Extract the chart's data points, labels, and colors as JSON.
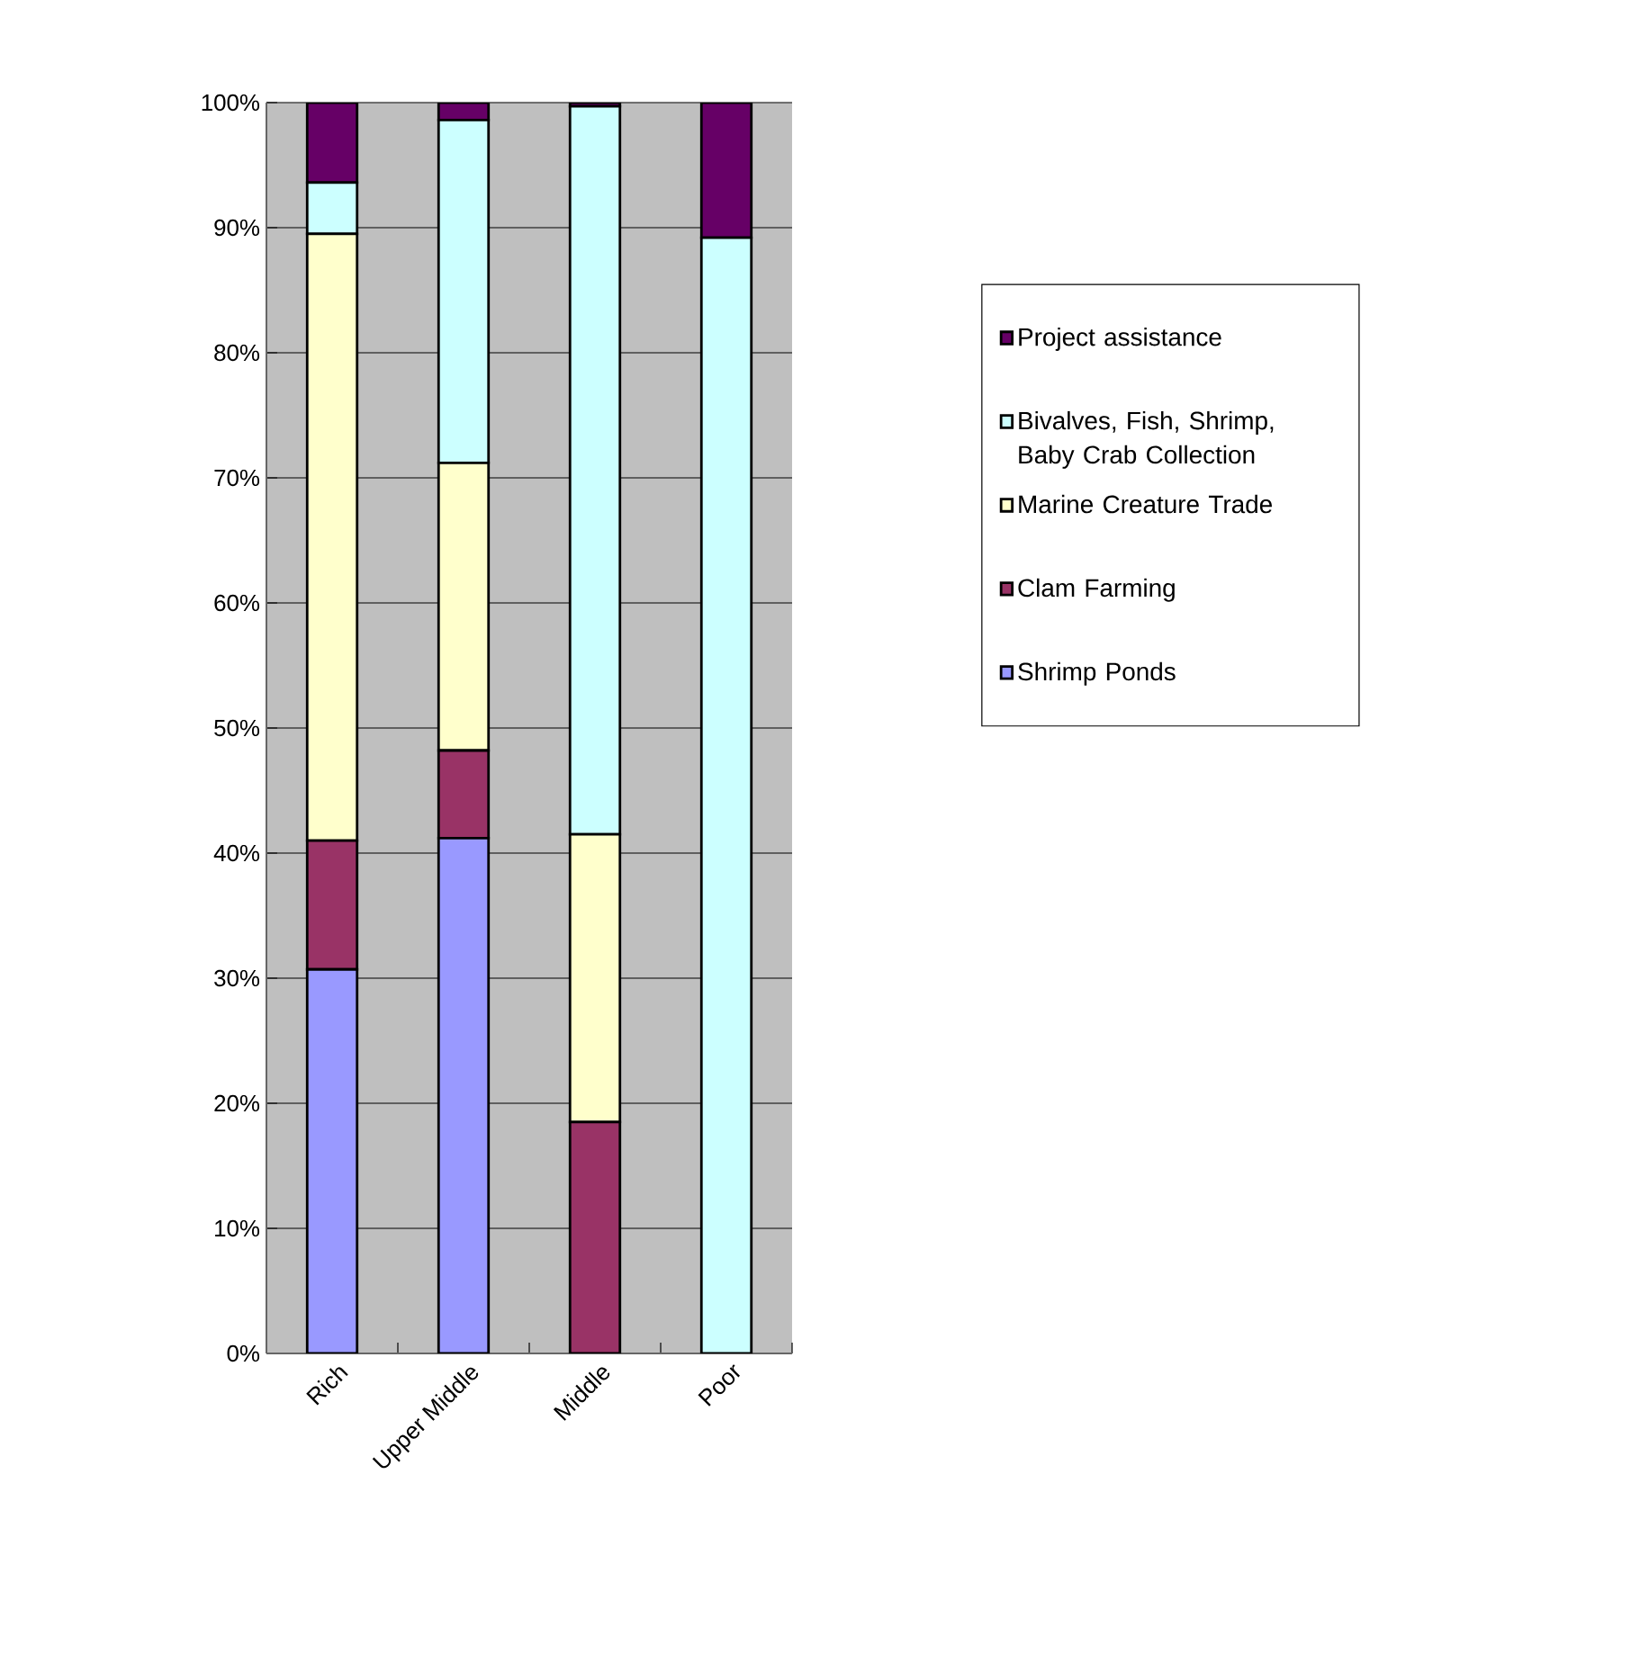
{
  "chart_data": {
    "type": "bar",
    "stacked": true,
    "categories": [
      "Rich",
      "Upper Middle",
      "Middle",
      "Poor"
    ],
    "series": [
      {
        "name": "Shrimp Ponds",
        "color": "#9999ff",
        "values": [
          30.7,
          41.2,
          0,
          0
        ]
      },
      {
        "name": "Clam Farming",
        "color": "#993366",
        "values": [
          10.3,
          7.0,
          18.5,
          0
        ]
      },
      {
        "name": "Marine Creature Trade",
        "color": "#ffffcc",
        "values": [
          48.5,
          23.0,
          23.0,
          0
        ]
      },
      {
        "name": "Bivalves, Fish, Shrimp, Baby Crab Collection",
        "color": "#ccffff",
        "values": [
          4.1,
          27.4,
          58.2,
          89.2
        ]
      },
      {
        "name": "Project assistance",
        "color": "#660066",
        "values": [
          6.4,
          1.4,
          0.3,
          10.8
        ]
      }
    ],
    "ylim": [
      0,
      100
    ],
    "yticks": [
      {
        "value": 0,
        "label": "0%"
      },
      {
        "value": 10,
        "label": "10%"
      },
      {
        "value": 20,
        "label": "20%"
      },
      {
        "value": 30,
        "label": "30%"
      },
      {
        "value": 40,
        "label": "40%"
      },
      {
        "value": 50,
        "label": "50%"
      },
      {
        "value": 60,
        "label": "60%"
      },
      {
        "value": 70,
        "label": "70%"
      },
      {
        "value": 80,
        "label": "80%"
      },
      {
        "value": 90,
        "label": "90%"
      },
      {
        "value": 100,
        "label": "100%"
      }
    ],
    "grid": "y",
    "legend": "right"
  }
}
